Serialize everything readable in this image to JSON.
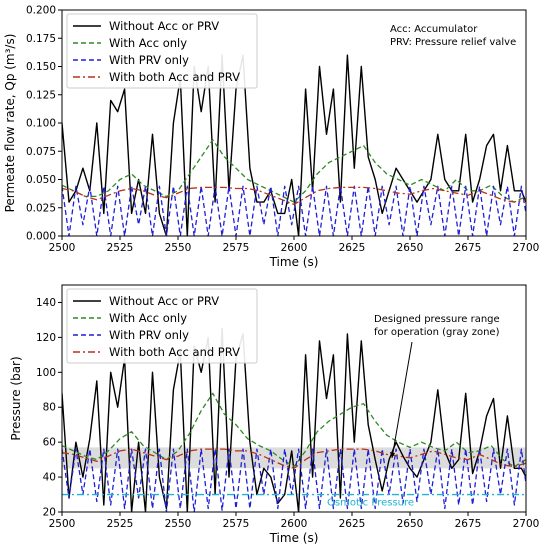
{
  "chart_data": [
    {
      "type": "line",
      "xlabel": "Time (s)",
      "ylabel": "Permeate flow rate, Qp (m³/s)",
      "xlim": [
        2500,
        2700
      ],
      "ylim": [
        0,
        0.2
      ],
      "xticks": [
        "2500",
        "2525",
        "2550",
        "2575",
        "2600",
        "2625",
        "2650",
        "2675",
        "2700"
      ],
      "yticks": [
        "0.000",
        "0.025",
        "0.050",
        "0.075",
        "0.100",
        "0.125",
        "0.150",
        "0.175",
        "0.200"
      ],
      "legend_position": "top-left",
      "annotation": [
        "Acc: Accumulator",
        "PRV: Pressure relief valve"
      ],
      "series": [
        {
          "name": "Without Acc or PRV",
          "color": "#000000",
          "style": "solid",
          "x": [
            2500,
            2503,
            2506,
            2509,
            2512,
            2515,
            2518,
            2521,
            2524,
            2527,
            2530,
            2533,
            2536,
            2539,
            2542,
            2545,
            2548,
            2551,
            2554,
            2557,
            2560,
            2563,
            2566,
            2569,
            2572,
            2575,
            2578,
            2581,
            2584,
            2587,
            2590,
            2593,
            2596,
            2599,
            2602,
            2605,
            2608,
            2611,
            2614,
            2617,
            2620,
            2623,
            2626,
            2629,
            2632,
            2635,
            2638,
            2641,
            2644,
            2647,
            2650,
            2653,
            2656,
            2659,
            2662,
            2665,
            2668,
            2671,
            2674,
            2677,
            2680,
            2683,
            2686,
            2689,
            2692,
            2695,
            2698,
            2700
          ],
          "y": [
            0.1,
            0.03,
            0.04,
            0.06,
            0.04,
            0.1,
            0.02,
            0.12,
            0.11,
            0.13,
            0.02,
            0.05,
            0.02,
            0.09,
            0.02,
            0.0,
            0.1,
            0.14,
            0.0,
            0.15,
            0.11,
            0.15,
            0.03,
            0.16,
            0.04,
            0.13,
            0.16,
            0.06,
            0.03,
            0.03,
            0.04,
            0.02,
            0.02,
            0.05,
            0.0,
            0.13,
            0.04,
            0.15,
            0.09,
            0.13,
            0.03,
            0.16,
            0.06,
            0.15,
            0.07,
            0.05,
            0.02,
            0.04,
            0.06,
            0.05,
            0.04,
            0.03,
            0.04,
            0.05,
            0.09,
            0.05,
            0.04,
            0.04,
            0.09,
            0.03,
            0.05,
            0.08,
            0.09,
            0.04,
            0.08,
            0.04,
            0.04,
            0.03
          ]
        },
        {
          "name": "With Acc only",
          "color": "#2e8b22",
          "style": "dashed",
          "x": [
            2500,
            2505,
            2510,
            2515,
            2520,
            2525,
            2530,
            2535,
            2540,
            2545,
            2550,
            2555,
            2560,
            2565,
            2570,
            2575,
            2580,
            2585,
            2590,
            2595,
            2600,
            2605,
            2610,
            2615,
            2620,
            2625,
            2630,
            2635,
            2640,
            2645,
            2650,
            2655,
            2660,
            2665,
            2670,
            2675,
            2680,
            2685,
            2690,
            2695,
            2700
          ],
          "y": [
            0.045,
            0.04,
            0.035,
            0.035,
            0.04,
            0.05,
            0.055,
            0.045,
            0.04,
            0.035,
            0.04,
            0.055,
            0.07,
            0.085,
            0.07,
            0.06,
            0.05,
            0.045,
            0.04,
            0.035,
            0.03,
            0.04,
            0.055,
            0.065,
            0.07,
            0.075,
            0.08,
            0.065,
            0.055,
            0.05,
            0.045,
            0.05,
            0.045,
            0.04,
            0.05,
            0.04,
            0.04,
            0.045,
            0.035,
            0.03,
            0.035
          ]
        },
        {
          "name": "With PRV only",
          "color": "#1f1fd6",
          "style": "dashed",
          "x": [
            2500,
            2503,
            2506,
            2509,
            2512,
            2515,
            2518,
            2521,
            2524,
            2527,
            2530,
            2533,
            2536,
            2539,
            2542,
            2545,
            2548,
            2551,
            2554,
            2557,
            2560,
            2563,
            2566,
            2569,
            2572,
            2575,
            2578,
            2581,
            2584,
            2587,
            2590,
            2593,
            2596,
            2599,
            2602,
            2605,
            2608,
            2611,
            2614,
            2617,
            2620,
            2623,
            2626,
            2629,
            2632,
            2635,
            2638,
            2641,
            2644,
            2647,
            2650,
            2653,
            2656,
            2659,
            2662,
            2665,
            2668,
            2671,
            2674,
            2677,
            2680,
            2683,
            2686,
            2689,
            2692,
            2695,
            2698,
            2700
          ],
          "y": [
            0.044,
            0.0,
            0.044,
            0.01,
            0.044,
            0.0,
            0.044,
            0.0,
            0.044,
            0.0,
            0.044,
            0.01,
            0.044,
            0.0,
            0.044,
            0.0,
            0.044,
            0.0,
            0.044,
            0.0,
            0.044,
            0.0,
            0.044,
            0.0,
            0.044,
            0.0,
            0.044,
            0.0,
            0.044,
            0.01,
            0.044,
            0.0,
            0.044,
            0.01,
            0.044,
            0.0,
            0.044,
            0.0,
            0.044,
            0.0,
            0.044,
            0.0,
            0.044,
            0.0,
            0.044,
            0.0,
            0.044,
            0.01,
            0.044,
            0.0,
            0.044,
            0.0,
            0.044,
            0.01,
            0.044,
            0.0,
            0.044,
            0.0,
            0.044,
            0.0,
            0.044,
            0.0,
            0.044,
            0.01,
            0.044,
            0.0,
            0.044,
            0.02
          ]
        },
        {
          "name": "With both Acc and PRV",
          "color": "#b8321b",
          "style": "dashdot",
          "x": [
            2500,
            2505,
            2510,
            2515,
            2520,
            2525,
            2530,
            2535,
            2540,
            2545,
            2550,
            2555,
            2560,
            2565,
            2570,
            2575,
            2580,
            2585,
            2590,
            2595,
            2600,
            2605,
            2610,
            2615,
            2620,
            2625,
            2630,
            2635,
            2640,
            2645,
            2650,
            2655,
            2660,
            2665,
            2670,
            2675,
            2680,
            2685,
            2690,
            2695,
            2700
          ],
          "y": [
            0.042,
            0.04,
            0.035,
            0.032,
            0.036,
            0.04,
            0.042,
            0.04,
            0.036,
            0.034,
            0.038,
            0.042,
            0.043,
            0.043,
            0.043,
            0.042,
            0.042,
            0.04,
            0.036,
            0.032,
            0.028,
            0.034,
            0.04,
            0.042,
            0.043,
            0.043,
            0.043,
            0.042,
            0.04,
            0.038,
            0.037,
            0.04,
            0.042,
            0.04,
            0.038,
            0.036,
            0.04,
            0.036,
            0.032,
            0.03,
            0.032
          ]
        }
      ]
    },
    {
      "type": "line",
      "xlabel": "Time (s)",
      "ylabel": "Pressure (bar)",
      "xlim": [
        2500,
        2700
      ],
      "ylim": [
        20,
        150
      ],
      "xticks": [
        "2500",
        "2525",
        "2550",
        "2575",
        "2600",
        "2625",
        "2650",
        "2675",
        "2700"
      ],
      "yticks": [
        "20",
        "40",
        "60",
        "80",
        "100",
        "120",
        "140"
      ],
      "legend_position": "top-left",
      "gray_zone": [
        45,
        57
      ],
      "osmotic_pressure": 30,
      "osmotic_label": "Osmotic Pressure",
      "annotation": [
        "Designed pressure range",
        "for operation (gray zone)"
      ],
      "series": [
        {
          "name": "Without Acc or PRV",
          "color": "#000000",
          "style": "solid",
          "x": [
            2500,
            2503,
            2506,
            2509,
            2512,
            2515,
            2518,
            2521,
            2524,
            2527,
            2530,
            2533,
            2536,
            2539,
            2542,
            2545,
            2548,
            2551,
            2554,
            2557,
            2560,
            2563,
            2566,
            2569,
            2572,
            2575,
            2578,
            2581,
            2584,
            2587,
            2590,
            2593,
            2596,
            2599,
            2602,
            2605,
            2608,
            2611,
            2614,
            2617,
            2620,
            2623,
            2626,
            2629,
            2632,
            2635,
            2638,
            2641,
            2644,
            2647,
            2650,
            2653,
            2656,
            2659,
            2662,
            2665,
            2668,
            2671,
            2674,
            2677,
            2680,
            2683,
            2686,
            2689,
            2692,
            2695,
            2698,
            2700
          ],
          "y": [
            88,
            28,
            60,
            40,
            62,
            95,
            24,
            100,
            80,
            108,
            20,
            60,
            20,
            100,
            40,
            22,
            90,
            112,
            20,
            115,
            100,
            120,
            30,
            125,
            40,
            108,
            122,
            60,
            30,
            45,
            40,
            25,
            30,
            55,
            20,
            110,
            40,
            118,
            85,
            110,
            28,
            122,
            60,
            118,
            70,
            50,
            32,
            50,
            60,
            52,
            45,
            40,
            50,
            60,
            90,
            55,
            45,
            50,
            88,
            42,
            55,
            75,
            85,
            45,
            75,
            45,
            45,
            40
          ]
        },
        {
          "name": "With Acc only",
          "color": "#2e8b22",
          "style": "dashed",
          "x": [
            2500,
            2505,
            2510,
            2515,
            2520,
            2525,
            2530,
            2535,
            2540,
            2545,
            2550,
            2555,
            2560,
            2565,
            2570,
            2575,
            2580,
            2585,
            2590,
            2595,
            2600,
            2605,
            2610,
            2615,
            2620,
            2625,
            2630,
            2635,
            2640,
            2645,
            2650,
            2655,
            2660,
            2665,
            2670,
            2675,
            2680,
            2685,
            2690,
            2695,
            2700
          ],
          "y": [
            58,
            55,
            52,
            50,
            55,
            62,
            66,
            58,
            54,
            50,
            55,
            65,
            78,
            88,
            76,
            70,
            62,
            58,
            55,
            50,
            46,
            55,
            66,
            72,
            76,
            80,
            82,
            72,
            64,
            60,
            57,
            60,
            57,
            55,
            60,
            54,
            55,
            58,
            50,
            46,
            50
          ]
        },
        {
          "name": "With PRV only",
          "color": "#1f1fd6",
          "style": "dashed",
          "x": [
            2500,
            2503,
            2506,
            2509,
            2512,
            2515,
            2518,
            2521,
            2524,
            2527,
            2530,
            2533,
            2536,
            2539,
            2542,
            2545,
            2548,
            2551,
            2554,
            2557,
            2560,
            2563,
            2566,
            2569,
            2572,
            2575,
            2578,
            2581,
            2584,
            2587,
            2590,
            2593,
            2596,
            2599,
            2602,
            2605,
            2608,
            2611,
            2614,
            2617,
            2620,
            2623,
            2626,
            2629,
            2632,
            2635,
            2638,
            2641,
            2644,
            2647,
            2650,
            2653,
            2656,
            2659,
            2662,
            2665,
            2668,
            2671,
            2674,
            2677,
            2680,
            2683,
            2686,
            2689,
            2692,
            2695,
            2698,
            2700
          ],
          "y": [
            56,
            28,
            56,
            30,
            56,
            26,
            56,
            24,
            56,
            22,
            56,
            28,
            56,
            22,
            56,
            20,
            56,
            22,
            56,
            20,
            56,
            22,
            56,
            21,
            56,
            22,
            56,
            22,
            56,
            30,
            56,
            22,
            56,
            30,
            56,
            22,
            56,
            22,
            56,
            22,
            56,
            22,
            56,
            22,
            56,
            22,
            56,
            30,
            56,
            25,
            56,
            26,
            56,
            30,
            56,
            22,
            56,
            24,
            56,
            24,
            56,
            26,
            56,
            30,
            56,
            24,
            56,
            36
          ]
        },
        {
          "name": "With both Acc and PRV",
          "color": "#b8321b",
          "style": "dashdot",
          "x": [
            2500,
            2505,
            2510,
            2515,
            2520,
            2525,
            2530,
            2535,
            2540,
            2545,
            2550,
            2555,
            2560,
            2565,
            2570,
            2575,
            2580,
            2585,
            2590,
            2595,
            2600,
            2605,
            2610,
            2615,
            2620,
            2625,
            2630,
            2635,
            2640,
            2645,
            2650,
            2655,
            2660,
            2665,
            2670,
            2675,
            2680,
            2685,
            2690,
            2695,
            2700
          ],
          "y": [
            54,
            53,
            51,
            49,
            52,
            55,
            56,
            54,
            52,
            50,
            52,
            55,
            56,
            56,
            56,
            55,
            55,
            53,
            50,
            47,
            45,
            50,
            54,
            55,
            56,
            56,
            56,
            55,
            53,
            52,
            51,
            53,
            55,
            53,
            51,
            50,
            53,
            50,
            47,
            46,
            48
          ]
        }
      ]
    }
  ]
}
